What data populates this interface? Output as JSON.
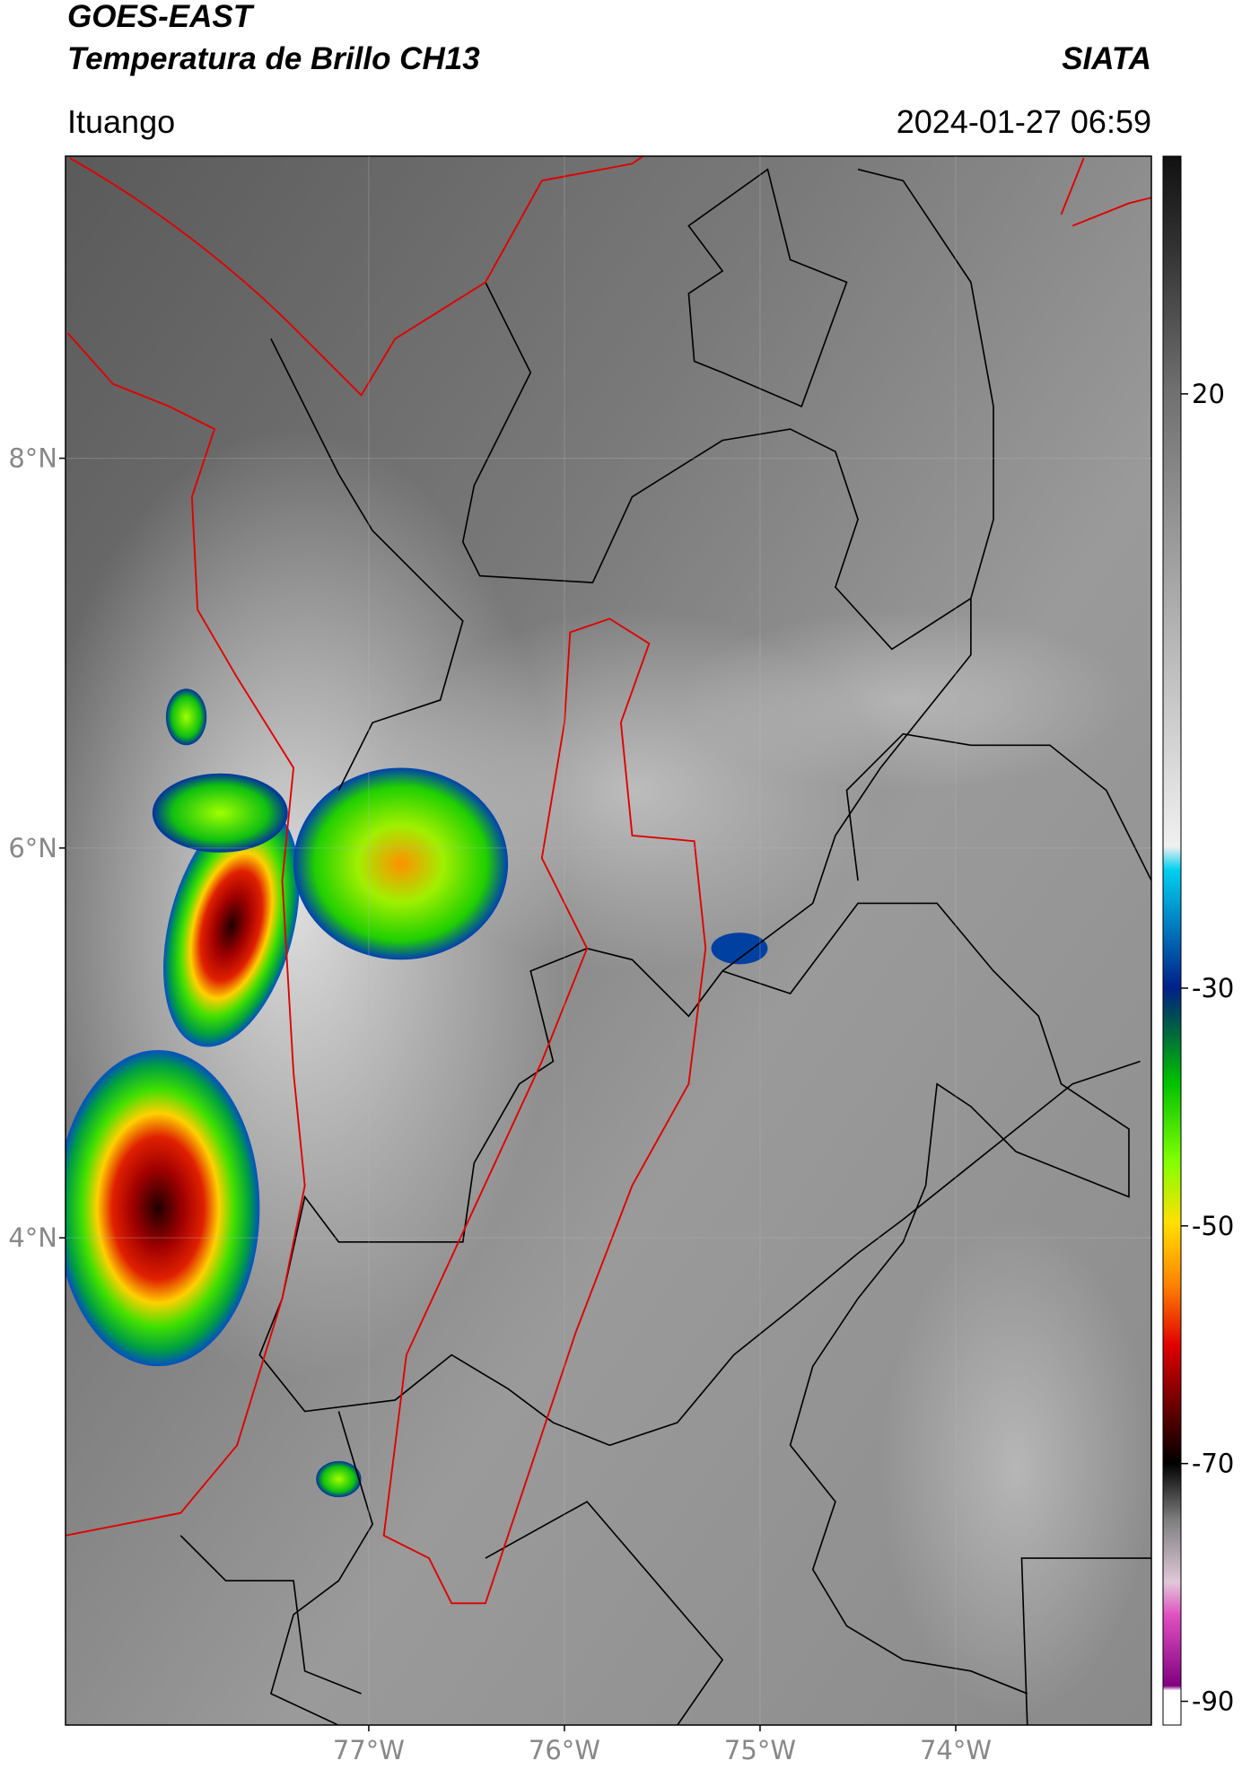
{
  "header": {
    "title": "GOES-EAST",
    "subtitle": "Temperatura de Brillo CH13",
    "source": "SIATA",
    "location": "Ituango",
    "timestamp": "2024-01-27 06:59"
  },
  "map": {
    "xlim": [
      -78.55,
      -73
    ],
    "ylim": [
      1.5,
      9.55
    ],
    "xticks": [
      {
        "value": -77,
        "label": "77°W"
      },
      {
        "value": -76,
        "label": "76°W"
      },
      {
        "value": -75,
        "label": "75°W"
      },
      {
        "value": -74,
        "label": "74°W"
      }
    ],
    "yticks": [
      {
        "value": 4,
        "label": "4°N"
      },
      {
        "value": 6,
        "label": "6°N"
      },
      {
        "value": 8,
        "label": "8°N"
      }
    ],
    "grid": true
  },
  "colorbar": {
    "lim": [
      -92,
      40
    ],
    "ticks": [
      20,
      -30,
      -50,
      -70,
      -90
    ]
  }
}
